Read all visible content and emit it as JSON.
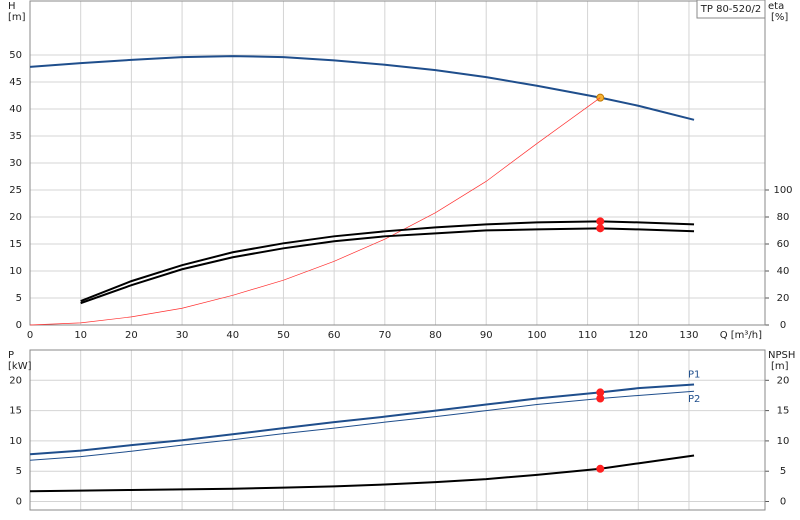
{
  "chart_data": [
    {
      "type": "line",
      "title": "TP 80-520/2",
      "y_label": "H",
      "y_unit": "[m]",
      "y2_label": "eta",
      "y2_unit": "[%]",
      "x_label": "Q [m³/h]",
      "x": [
        0,
        10,
        20,
        30,
        40,
        50,
        60,
        70,
        80,
        90,
        100,
        112.5,
        120,
        131
      ],
      "xlim": [
        0,
        145
      ],
      "xticks": [
        0,
        10,
        20,
        30,
        40,
        50,
        60,
        70,
        80,
        90,
        100,
        110,
        120,
        130
      ],
      "xtick_labels": true,
      "ylim": [
        0,
        60
      ],
      "yticks": [
        0,
        5,
        10,
        15,
        20,
        25,
        30,
        35,
        40,
        45,
        50
      ],
      "y2lim": [
        0,
        240
      ],
      "y2ticks": [
        0,
        20,
        40,
        60,
        80,
        100
      ],
      "grid": true,
      "series": [
        {
          "color": "#1f4e8c",
          "width": 2,
          "values": [
            47.8,
            48.5,
            49.1,
            49.6,
            49.8,
            49.6,
            49.0,
            48.2,
            47.2,
            45.9,
            44.3,
            42.1,
            40.6,
            38.0
          ],
          "marker_x": 112.5,
          "marker_color": "#f5b335"
        },
        {
          "color": "#ff3030",
          "width": 0.7,
          "values": [
            0,
            0.4,
            1.5,
            3.1,
            5.5,
            8.3,
            11.8,
            15.9,
            20.8,
            26.6,
            33.6,
            42.1,
            null,
            null
          ]
        },
        {
          "color": "#000000",
          "width": 2,
          "axis": "y2",
          "values": [
            null,
            17.7,
            32.5,
            44.3,
            53.9,
            60.5,
            65.7,
            69.4,
            72.3,
            74.5,
            76.0,
            76.8,
            76.0,
            74.5
          ],
          "marker_x": 112.5,
          "marker_color": "#ff2020"
        },
        {
          "color": "#000000",
          "width": 2,
          "axis": "y2",
          "values": [
            null,
            16.2,
            29.5,
            41.3,
            50.2,
            56.8,
            62.0,
            65.7,
            67.9,
            70.1,
            70.8,
            71.6,
            70.8,
            69.4
          ],
          "marker_x": 112.5,
          "marker_color": "#ff2020"
        }
      ]
    },
    {
      "type": "line",
      "y_label": "P",
      "y_unit": "[kW]",
      "y2_label": "NPSH",
      "y2_unit": "[m]",
      "x": [
        0,
        10,
        20,
        30,
        40,
        50,
        60,
        70,
        80,
        90,
        100,
        112.5,
        120,
        131
      ],
      "xlim": [
        0,
        145
      ],
      "xticks": [
        0,
        10,
        20,
        30,
        40,
        50,
        60,
        70,
        80,
        90,
        100,
        110,
        120,
        130
      ],
      "xtick_labels": false,
      "ylim": [
        -1.4,
        25
      ],
      "yticks": [
        0,
        5,
        10,
        15,
        20
      ],
      "y2lim": [
        -1.4,
        25
      ],
      "y2ticks": [
        0,
        5,
        10,
        15,
        20
      ],
      "grid": true,
      "series": [
        {
          "name": "P1",
          "color": "#1f4e8c",
          "width": 2,
          "values": [
            7.8,
            8.4,
            9.3,
            10.1,
            11.1,
            12.1,
            13.1,
            14.0,
            15.0,
            16.0,
            17.0,
            18.0,
            18.7,
            19.3
          ],
          "marker_x": 112.5,
          "marker_color": "#ff2020"
        },
        {
          "name": "P2",
          "color": "#1f4e8c",
          "width": 1,
          "values": [
            6.8,
            7.4,
            8.3,
            9.3,
            10.2,
            11.2,
            12.1,
            13.1,
            14.0,
            15.0,
            16.0,
            17.0,
            17.5,
            18.2
          ],
          "marker_x": 112.5,
          "marker_color": "#ff2020"
        },
        {
          "color": "#000000",
          "width": 2,
          "axis": "y2",
          "values": [
            1.7,
            1.8,
            1.9,
            2.0,
            2.1,
            2.3,
            2.5,
            2.8,
            3.2,
            3.7,
            4.4,
            5.4,
            6.3,
            7.6
          ],
          "marker_x": 112.5,
          "marker_color": "#ff2020"
        }
      ]
    }
  ]
}
